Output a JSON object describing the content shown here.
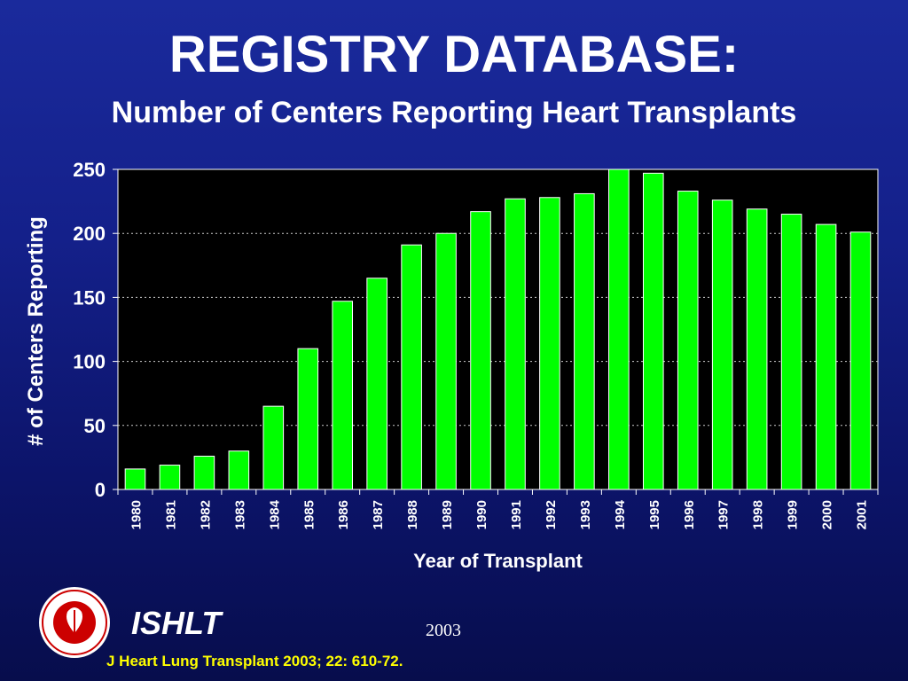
{
  "header": {
    "title": "REGISTRY DATABASE:",
    "subtitle": "Number of Centers Reporting Heart Transplants"
  },
  "footer": {
    "org": "ISHLT",
    "year": "2003",
    "citation": "J Heart Lung Transplant 2003; 22: 610-72.",
    "logo_text": "INTERNATIONAL SOCIETY FOR HEART & LUNG TRANSPLANTATION"
  },
  "colors": {
    "bar": "#00ff00",
    "plot_bg": "#000000",
    "text": "#ffffff",
    "citation": "#ffff00"
  },
  "chart_data": {
    "type": "bar",
    "title": "REGISTRY DATABASE:",
    "subtitle": "Number of Centers Reporting Heart Transplants",
    "xlabel": "Year of Transplant",
    "ylabel": "# of Centers Reporting",
    "categories": [
      "1980",
      "1981",
      "1982",
      "1983",
      "1984",
      "1985",
      "1986",
      "1987",
      "1988",
      "1989",
      "1990",
      "1991",
      "1992",
      "1993",
      "1994",
      "1995",
      "1996",
      "1997",
      "1998",
      "1999",
      "2000",
      "2001"
    ],
    "values": [
      16,
      19,
      26,
      30,
      65,
      110,
      147,
      165,
      191,
      200,
      217,
      227,
      228,
      231,
      250,
      247,
      233,
      226,
      219,
      215,
      207,
      201
    ],
    "ylim": [
      0,
      250
    ],
    "yticks": [
      0,
      50,
      100,
      150,
      200,
      250
    ],
    "grid": true
  }
}
